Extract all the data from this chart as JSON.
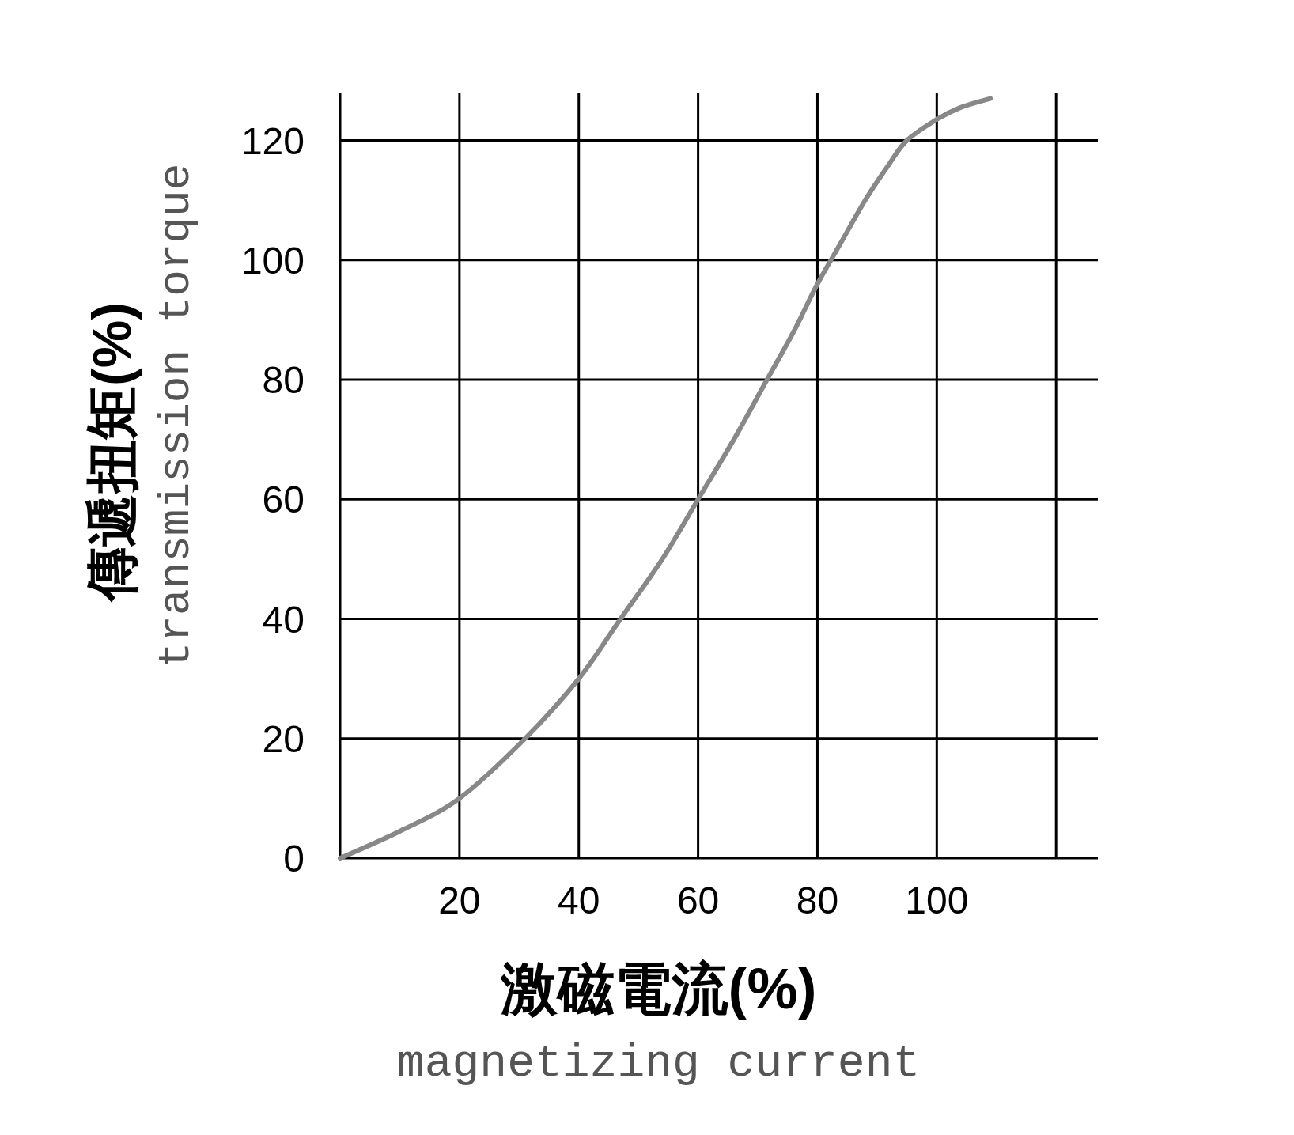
{
  "chart_data": {
    "type": "line",
    "xlabel": "激磁電流(%)\nmagnetizing current",
    "ylabel": "傳遞扭矩(%)\ntransmission torque",
    "series": [
      {
        "color": "#888888",
        "x": [
          0,
          10,
          20,
          31,
          40,
          47,
          54,
          60,
          66,
          71,
          76,
          80,
          84,
          88,
          92,
          95,
          100,
          104,
          109
        ],
        "values": [
          0,
          4.5,
          10,
          20,
          30,
          40,
          50,
          60,
          70,
          79,
          88,
          96,
          103,
          110,
          116,
          120,
          123.5,
          125.5,
          127
        ]
      }
    ],
    "xlim": [
      0,
      127
    ],
    "ylim": [
      0,
      128
    ],
    "xticks": [
      {
        "value": 0,
        "label": null
      },
      20,
      40,
      60,
      80,
      100,
      {
        "value": 120,
        "label": null
      }
    ],
    "yticks": [
      0,
      20,
      40,
      60,
      80,
      100,
      120
    ],
    "grid": true,
    "marker": "none",
    "line_style": "solid"
  }
}
